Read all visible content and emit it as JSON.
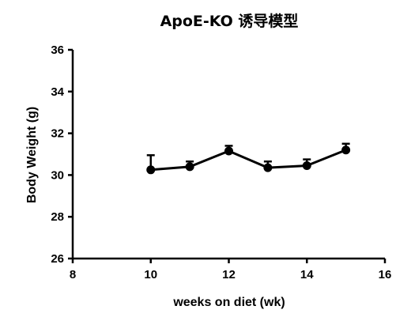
{
  "chart_data": {
    "type": "line",
    "title": "ApoE-KO 诱导模型",
    "xlabel": "weeks on diet (wk)",
    "ylabel": "Body Weight (g)",
    "xlim": [
      8,
      16
    ],
    "ylim": [
      26,
      36
    ],
    "xticks": [
      "8",
      "10",
      "12",
      "14",
      "16"
    ],
    "yticks": [
      "26",
      "28",
      "30",
      "32",
      "34",
      "36"
    ],
    "legend": "none",
    "grid": false,
    "series": [
      {
        "x": [
          10,
          11,
          12,
          13,
          14,
          15
        ],
        "y": [
          30.25,
          30.4,
          31.15,
          30.35,
          30.45,
          31.2
        ],
        "error_upper": [
          0.7,
          0.25,
          0.25,
          0.3,
          0.3,
          0.3
        ],
        "color": "#000000"
      }
    ]
  }
}
